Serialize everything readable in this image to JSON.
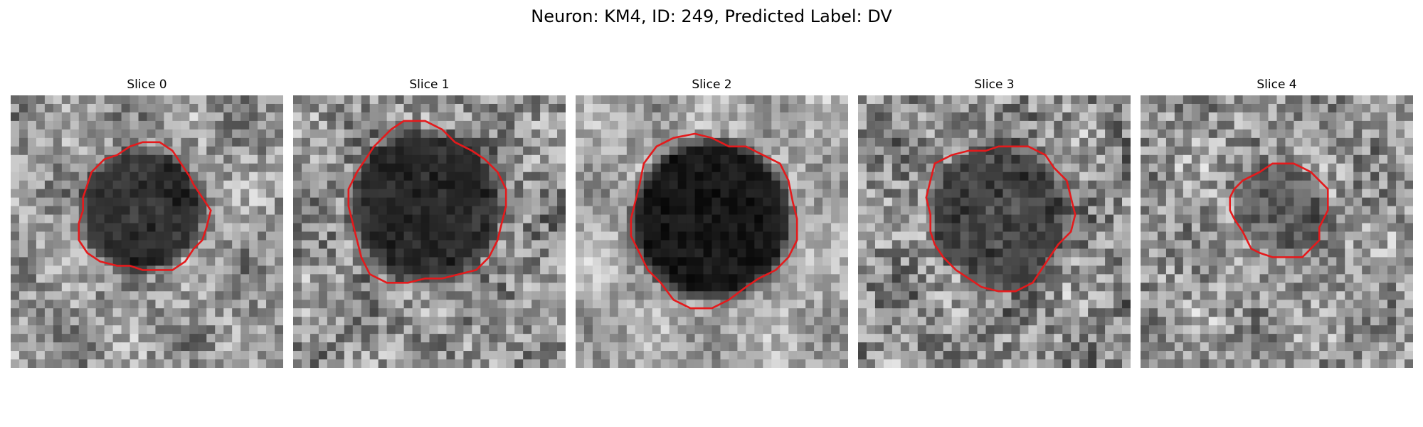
{
  "figure": {
    "title": "Neuron: KM4, ID: 249, Predicted Label: DV"
  },
  "colors": {
    "contour": "#e41a1c",
    "background": "#ffffff"
  },
  "panels": [
    {
      "title": "Slice 0"
    },
    {
      "title": "Slice 1"
    },
    {
      "title": "Slice 2"
    },
    {
      "title": "Slice 3"
    },
    {
      "title": "Slice 4"
    }
  ]
}
